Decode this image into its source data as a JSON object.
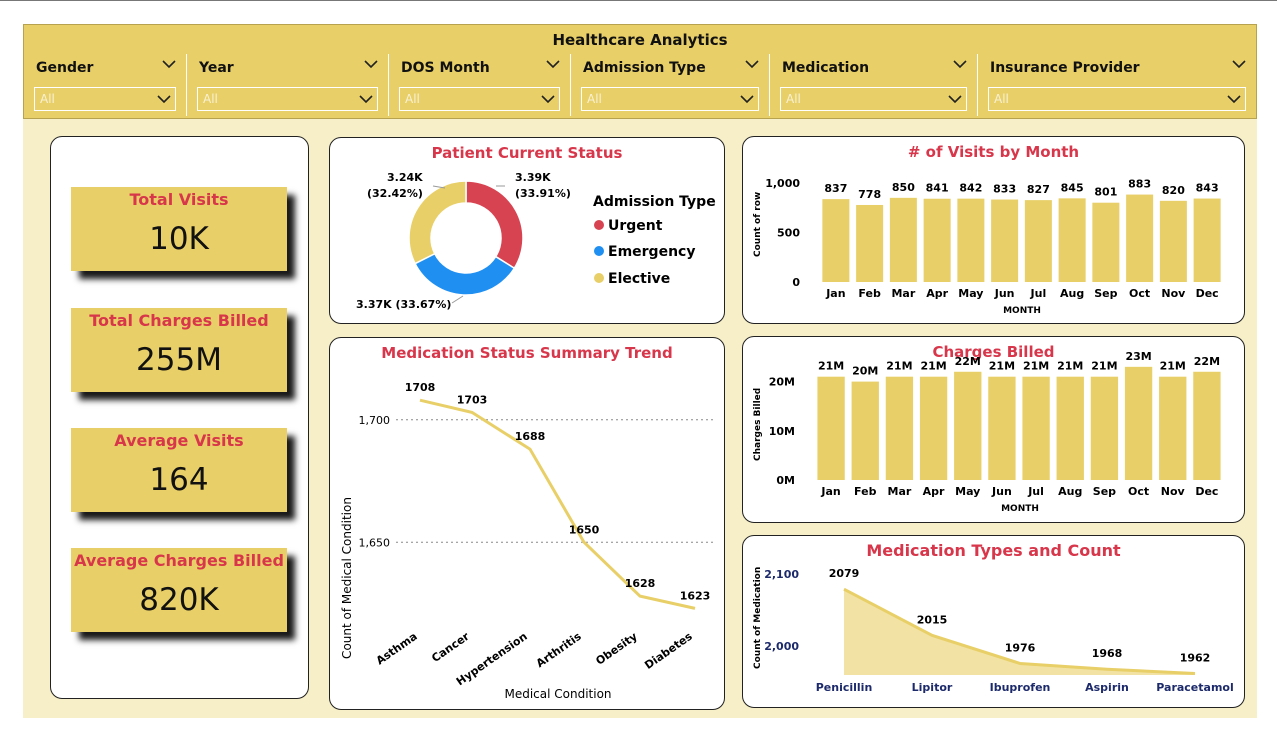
{
  "header": {
    "title": "Healthcare Analytics"
  },
  "slicers": [
    {
      "label": "Gender",
      "value": "All"
    },
    {
      "label": "Year",
      "value": "All"
    },
    {
      "label": "DOS Month",
      "value": "All"
    },
    {
      "label": "Admission Type",
      "value": "All"
    },
    {
      "label": "Medication",
      "value": "All"
    },
    {
      "label": "Insurance Provider",
      "value": "All"
    }
  ],
  "kpis": [
    {
      "title": "Total Visits",
      "value": "10K"
    },
    {
      "title": "Total Charges Billed",
      "value": "255M"
    },
    {
      "title": "Average Visits",
      "value": "164"
    },
    {
      "title": "Average Charges Billed",
      "value": "820K"
    }
  ],
  "colors": {
    "header": "#e8cf67",
    "bar": "#e8cf67",
    "accent": "#d8364a",
    "urgent": "#d84352",
    "emergency": "#1f8ff2",
    "elective": "#e8cf67"
  },
  "chart_data": [
    {
      "type": "pie",
      "title": "Patient Current Status",
      "legend_title": "Admission Type",
      "legend_position": "right",
      "slices": [
        {
          "name": "Urgent",
          "value": 3.39,
          "label": "3.39K",
          "percent": "(33.91%)"
        },
        {
          "name": "Emergency",
          "value": 3.37,
          "label": "3.37K (33.67%)",
          "percent": ""
        },
        {
          "name": "Elective",
          "value": 3.24,
          "label": "3.24K",
          "percent": "(32.42%)"
        }
      ]
    },
    {
      "type": "bar",
      "title": "# of Visits by Month",
      "categories": [
        "Jan",
        "Feb",
        "Mar",
        "Apr",
        "May",
        "Jun",
        "Jul",
        "Aug",
        "Sep",
        "Oct",
        "Nov",
        "Dec"
      ],
      "values": [
        837,
        778,
        850,
        841,
        842,
        833,
        827,
        845,
        801,
        883,
        820,
        843
      ],
      "labels": [
        "837",
        "778",
        "850",
        "841",
        "842",
        "833",
        "827",
        "845",
        "801",
        "883",
        "820",
        "843"
      ],
      "xlabel": "MONTH",
      "ylabel": "Count of row",
      "ylim": [
        0,
        1000
      ],
      "yticks": [
        0,
        500,
        1000
      ],
      "ytick_labels": [
        "0",
        "500",
        "1,000"
      ]
    },
    {
      "type": "line",
      "title": "Medication Status Summary Trend",
      "categories": [
        "Asthma",
        "Cancer",
        "Hypertension",
        "Arthritis",
        "Obesity",
        "Diabetes"
      ],
      "values": [
        1708,
        1703,
        1688,
        1650,
        1628,
        1623
      ],
      "labels": [
        "1708",
        "1703",
        "1688",
        "1650",
        "1628",
        "1623"
      ],
      "xlabel": "Medical Condition",
      "ylabel": "Count of Medical Condition",
      "ylim": [
        1615,
        1715
      ],
      "yticks": [
        1650,
        1700
      ],
      "ytick_labels": [
        "1,650",
        "1,700"
      ]
    },
    {
      "type": "bar",
      "title": "Charges Billed",
      "categories": [
        "Jan",
        "Feb",
        "Mar",
        "Apr",
        "May",
        "Jun",
        "Jul",
        "Aug",
        "Sep",
        "Oct",
        "Nov",
        "Dec"
      ],
      "values": [
        21,
        20,
        21,
        21,
        22,
        21,
        21,
        21,
        21,
        23,
        21,
        22
      ],
      "labels": [
        "21M",
        "20M",
        "21M",
        "21M",
        "22M",
        "21M",
        "21M",
        "21M",
        "21M",
        "23M",
        "21M",
        "22M"
      ],
      "xlabel": "MONTH",
      "ylabel": "Charges Billed",
      "ylim": [
        0,
        25
      ],
      "yticks": [
        0,
        10,
        20
      ],
      "ytick_labels": [
        "0M",
        "10M",
        "20M"
      ]
    },
    {
      "type": "area",
      "title": "Medication Types and Count",
      "categories": [
        "Penicillin",
        "Lipitor",
        "Ibuprofen",
        "Aspirin",
        "Paracetamol"
      ],
      "values": [
        2079,
        2015,
        1976,
        1968,
        1962
      ],
      "labels": [
        "2079",
        "2015",
        "1976",
        "1968",
        "1962"
      ],
      "xlabel": "",
      "ylabel": "Count of Medication",
      "ylim": [
        1960,
        2100
      ],
      "yticks": [
        2000,
        2100
      ],
      "ytick_labels": [
        "2,000",
        "2,100"
      ]
    }
  ]
}
